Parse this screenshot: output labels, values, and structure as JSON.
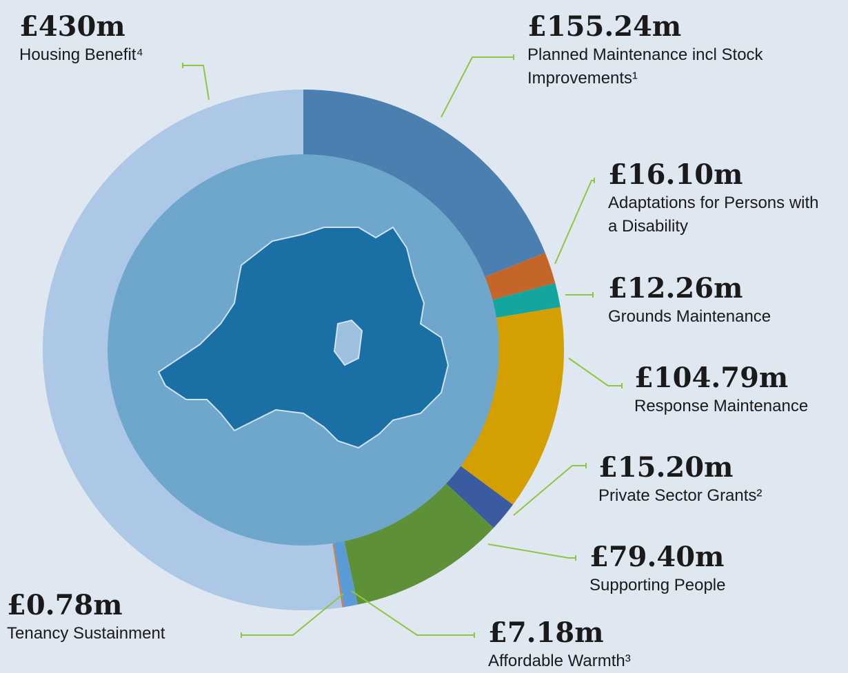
{
  "chart_data": {
    "type": "donut",
    "series": [
      {
        "name": "Planned Maintenance incl Stock Improvements¹",
        "value": 155.24,
        "value_label": "£155.24m",
        "color": "#4a7fb0"
      },
      {
        "name": "Adaptations for Persons with a Disability",
        "value": 16.1,
        "value_label": "£16.10m",
        "color": "#c4662a"
      },
      {
        "name": "Grounds Maintenance",
        "value": 12.26,
        "value_label": "£12.26m",
        "color": "#14a59e"
      },
      {
        "name": "Response Maintenance",
        "value": 104.79,
        "value_label": "£104.79m",
        "color": "#d49f00"
      },
      {
        "name": "Private Sector Grants²",
        "value": 15.2,
        "value_label": "£15.20m",
        "color": "#3a5ba0"
      },
      {
        "name": "Supporting People",
        "value": 79.4,
        "value_label": "£79.40m",
        "color": "#5e9038"
      },
      {
        "name": "Affordable Warmth³",
        "value": 7.18,
        "value_label": "£7.18m",
        "color": "#5b9bd5"
      },
      {
        "name": "Tenancy Sustainment",
        "value": 0.78,
        "value_label": "£0.78m",
        "color": "#e07a2a"
      },
      {
        "name": "Housing Benefit⁴",
        "value": 430,
        "value_label": "£430m",
        "color": "#adc8e6"
      }
    ]
  }
}
